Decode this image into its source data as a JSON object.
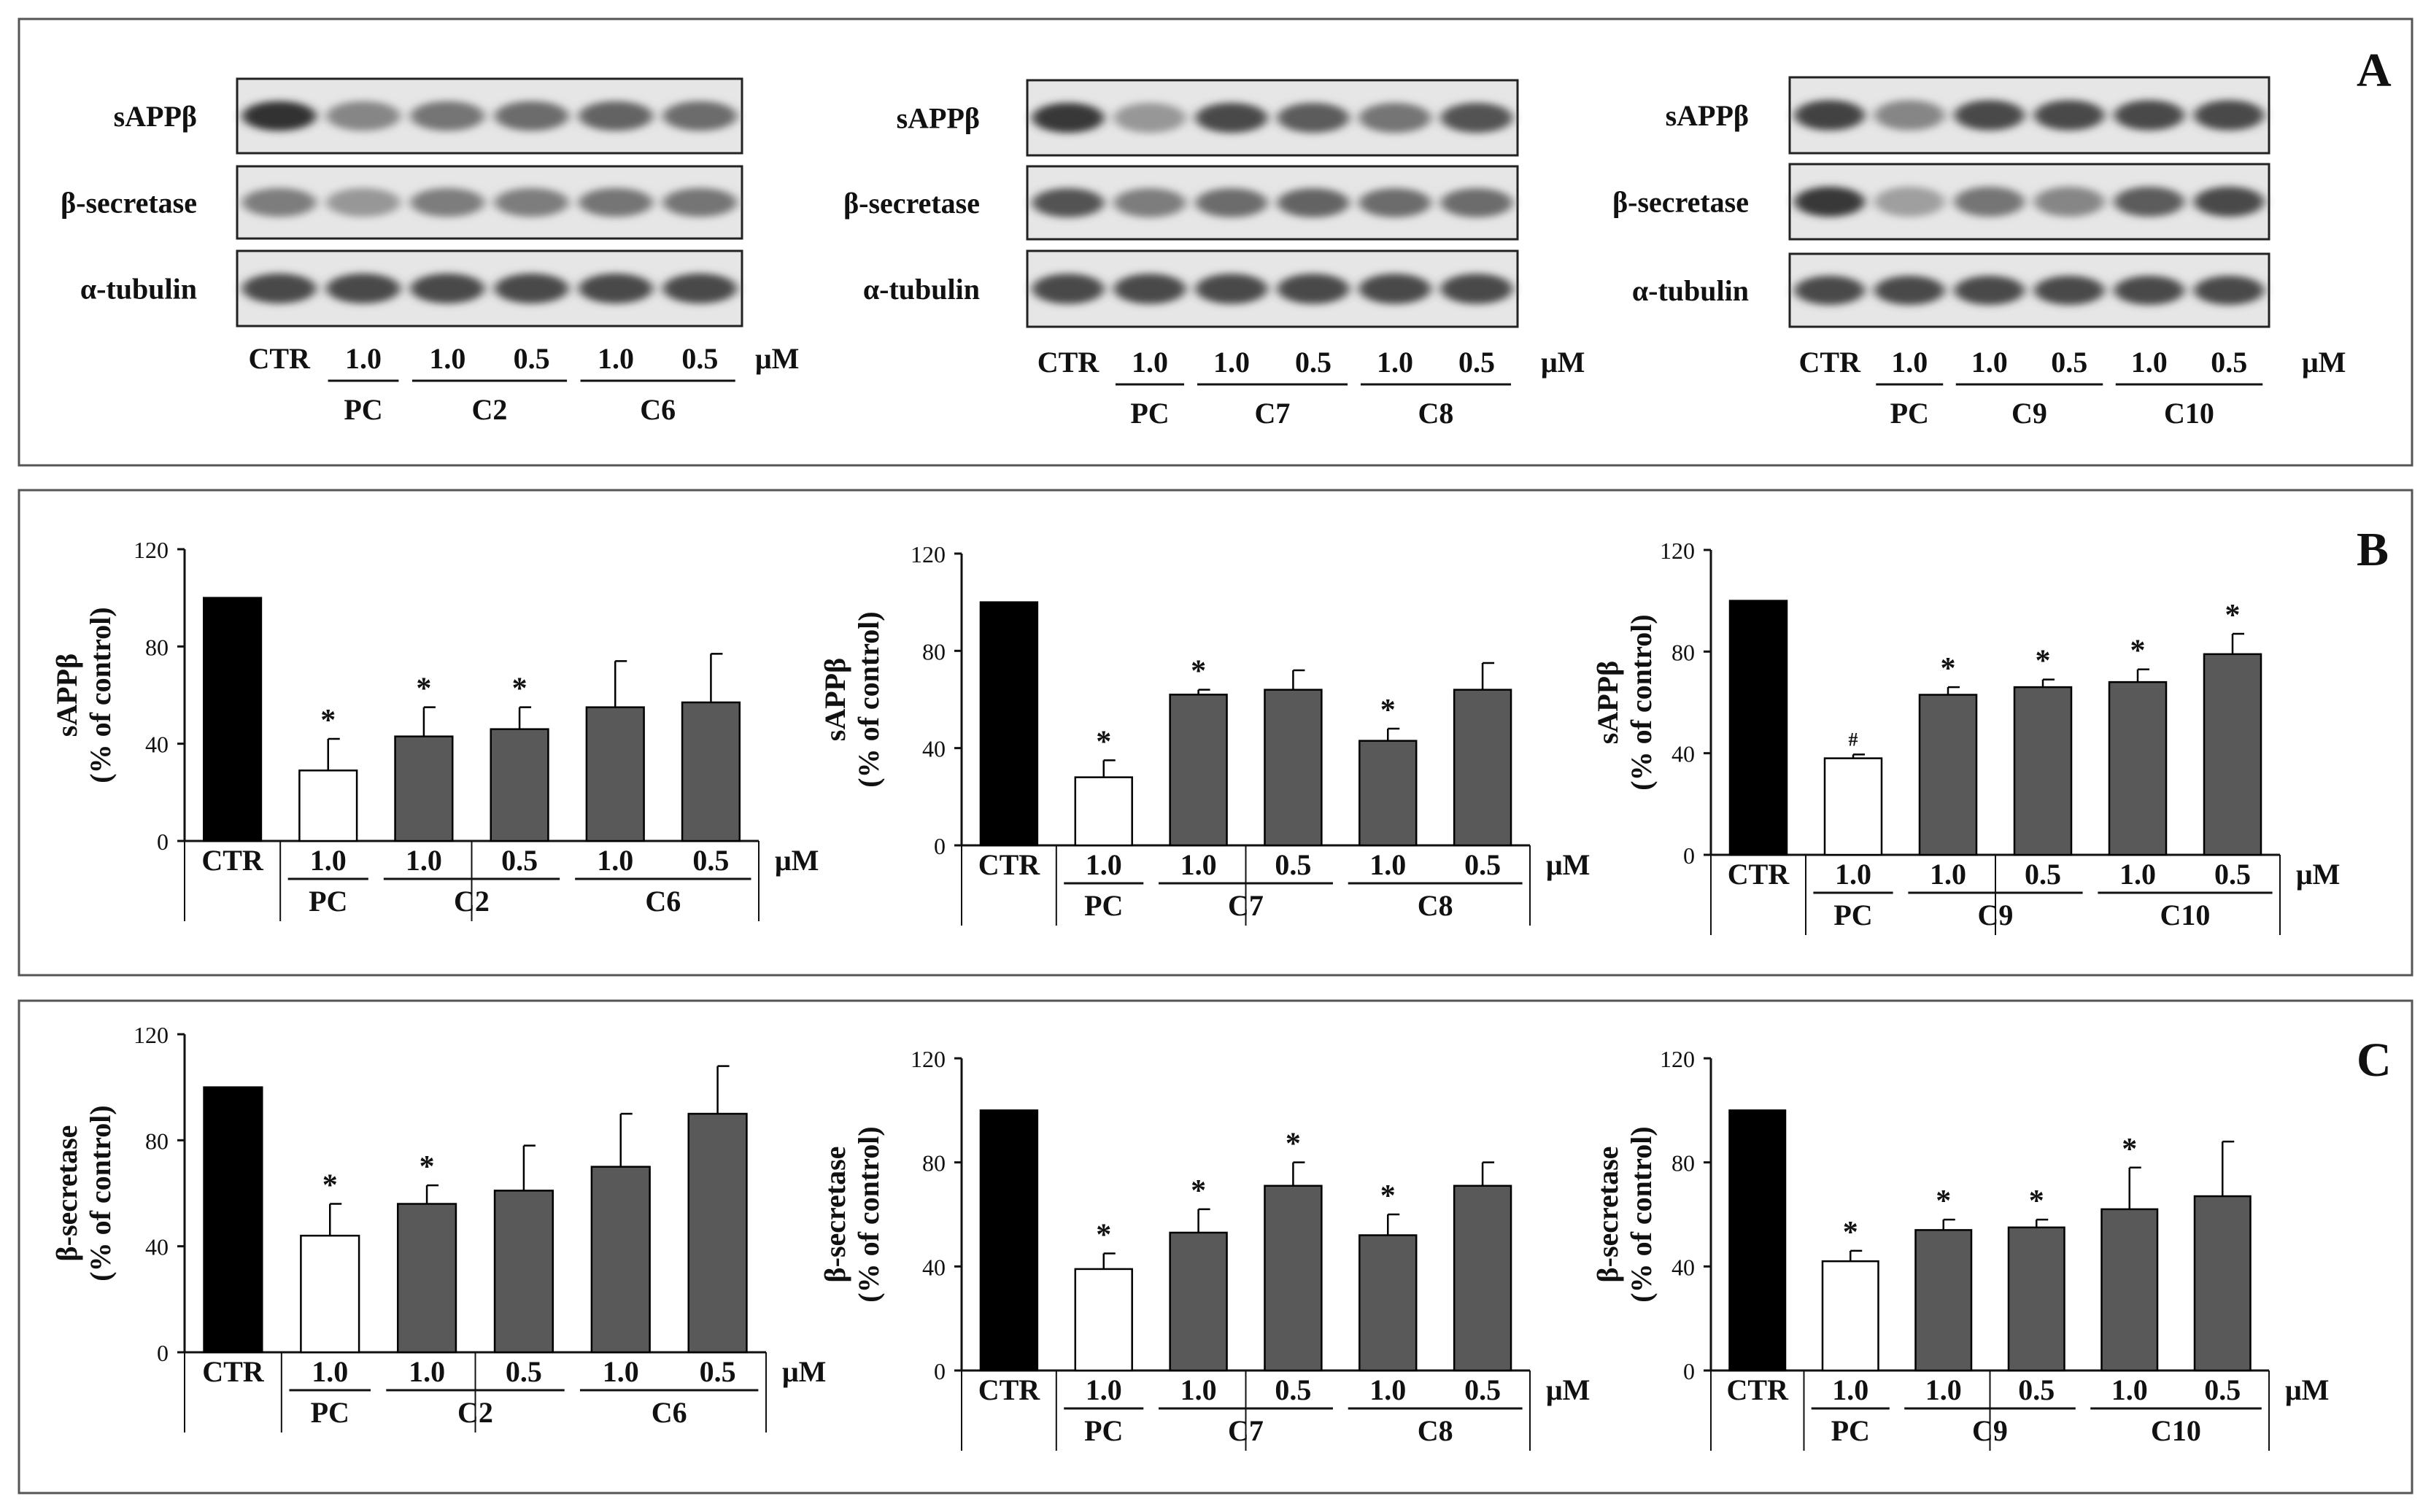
{
  "panels": {
    "A": {
      "letter": "A"
    },
    "B": {
      "letter": "B"
    },
    "C": {
      "letter": "C"
    }
  },
  "blots": [
    {
      "rows": [
        "sAPPβ",
        "β-secretase",
        "α-tubulin"
      ],
      "lanes": [
        "CTR",
        "1.0",
        "1.0",
        "0.5",
        "1.0",
        "0.5"
      ],
      "groups": [
        "PC",
        "C2",
        "C6"
      ],
      "unit": "μM",
      "intensity": [
        [
          0.95,
          0.45,
          0.55,
          0.6,
          0.65,
          0.6
        ],
        [
          0.5,
          0.35,
          0.5,
          0.5,
          0.55,
          0.55
        ],
        [
          0.8,
          0.8,
          0.8,
          0.8,
          0.8,
          0.8
        ]
      ]
    },
    {
      "rows": [
        "sAPPβ",
        "β-secretase",
        "α-tubulin"
      ],
      "lanes": [
        "CTR",
        "1.0",
        "1.0",
        "0.5",
        "1.0",
        "0.5"
      ],
      "groups": [
        "PC",
        "C7",
        "C8"
      ],
      "unit": "μM",
      "intensity": [
        [
          0.9,
          0.35,
          0.8,
          0.7,
          0.55,
          0.75
        ],
        [
          0.75,
          0.5,
          0.6,
          0.65,
          0.6,
          0.6
        ],
        [
          0.8,
          0.8,
          0.8,
          0.8,
          0.8,
          0.8
        ]
      ]
    },
    {
      "rows": [
        "sAPPβ",
        "β-secretase",
        "α-tubulin"
      ],
      "lanes": [
        "CTR",
        "1.0",
        "1.0",
        "0.5",
        "1.0",
        "0.5"
      ],
      "groups": [
        "PC",
        "C9",
        "C10"
      ],
      "unit": "μM",
      "intensity": [
        [
          0.85,
          0.45,
          0.8,
          0.8,
          0.8,
          0.8
        ],
        [
          0.9,
          0.3,
          0.55,
          0.45,
          0.7,
          0.8
        ],
        [
          0.8,
          0.8,
          0.8,
          0.8,
          0.8,
          0.8
        ]
      ]
    }
  ],
  "chart_data": [
    {
      "type": "bar",
      "panel": "B",
      "categories": [
        "CTR",
        "1.0",
        "1.0",
        "0.5",
        "1.0",
        "0.5"
      ],
      "groups": [
        "PC",
        "C2",
        "C6"
      ],
      "values": [
        100,
        29,
        43,
        46,
        55,
        57
      ],
      "errors": [
        0,
        13,
        12,
        9,
        19,
        20
      ],
      "significance": [
        "",
        "*",
        "*",
        "*",
        "",
        ""
      ],
      "ylabel": [
        "sAPPβ",
        "(% of control)"
      ],
      "ylim": [
        0,
        120
      ],
      "yticks": [
        0,
        40,
        80,
        120
      ],
      "unit": "μM",
      "colors": [
        "#000000",
        "#ffffff",
        "#595959",
        "#595959",
        "#595959",
        "#595959"
      ]
    },
    {
      "type": "bar",
      "panel": "B",
      "categories": [
        "CTR",
        "1.0",
        "1.0",
        "0.5",
        "1.0",
        "0.5"
      ],
      "groups": [
        "PC",
        "C7",
        "C8"
      ],
      "values": [
        100,
        28,
        62,
        64,
        43,
        64
      ],
      "errors": [
        0,
        7,
        2,
        8,
        5,
        11
      ],
      "significance": [
        "",
        "*",
        "*",
        "",
        "*",
        ""
      ],
      "ylabel": [
        "sAPPβ",
        "(% of control)"
      ],
      "ylim": [
        0,
        120
      ],
      "yticks": [
        0,
        40,
        80,
        120
      ],
      "unit": "μM",
      "colors": [
        "#000000",
        "#ffffff",
        "#595959",
        "#595959",
        "#595959",
        "#595959"
      ]
    },
    {
      "type": "bar",
      "panel": "B",
      "categories": [
        "CTR",
        "1.0",
        "1.0",
        "0.5",
        "1.0",
        "0.5"
      ],
      "groups": [
        "PC",
        "C9",
        "C10"
      ],
      "values": [
        100,
        38,
        63,
        66,
        68,
        79
      ],
      "errors": [
        0,
        1.5,
        3,
        3,
        5,
        8
      ],
      "significance": [
        "",
        "#",
        "*",
        "*",
        "*",
        "*"
      ],
      "ylabel": [
        "sAPPβ",
        "(% of control)"
      ],
      "ylim": [
        0,
        120
      ],
      "yticks": [
        0,
        40,
        80,
        120
      ],
      "unit": "μM",
      "colors": [
        "#000000",
        "#ffffff",
        "#595959",
        "#595959",
        "#595959",
        "#595959"
      ]
    },
    {
      "type": "bar",
      "panel": "C",
      "categories": [
        "CTR",
        "1.0",
        "1.0",
        "0.5",
        "1.0",
        "0.5"
      ],
      "groups": [
        "PC",
        "C2",
        "C6"
      ],
      "values": [
        100,
        44,
        56,
        61,
        70,
        90
      ],
      "errors": [
        0,
        12,
        7,
        17,
        20,
        18
      ],
      "significance": [
        "",
        "*",
        "*",
        "",
        "",
        ""
      ],
      "ylabel": [
        "β-secretase",
        "(% of control)"
      ],
      "ylim": [
        0,
        120
      ],
      "yticks": [
        0,
        40,
        80,
        120
      ],
      "unit": "μM",
      "colors": [
        "#000000",
        "#ffffff",
        "#595959",
        "#595959",
        "#595959",
        "#595959"
      ]
    },
    {
      "type": "bar",
      "panel": "C",
      "categories": [
        "CTR",
        "1.0",
        "1.0",
        "0.5",
        "1.0",
        "0.5"
      ],
      "groups": [
        "PC",
        "C7",
        "C8"
      ],
      "values": [
        100,
        39,
        53,
        71,
        52,
        71
      ],
      "errors": [
        0,
        6,
        9,
        9,
        8,
        9
      ],
      "significance": [
        "",
        "*",
        "*",
        "*",
        "*",
        ""
      ],
      "ylabel": [
        "β-secretase",
        "(% of control)"
      ],
      "ylim": [
        0,
        120
      ],
      "yticks": [
        0,
        40,
        80,
        120
      ],
      "unit": "μM",
      "colors": [
        "#000000",
        "#ffffff",
        "#595959",
        "#595959",
        "#595959",
        "#595959"
      ]
    },
    {
      "type": "bar",
      "panel": "C",
      "categories": [
        "CTR",
        "1.0",
        "1.0",
        "0.5",
        "1.0",
        "0.5"
      ],
      "groups": [
        "PC",
        "C9",
        "C10"
      ],
      "values": [
        100,
        42,
        54,
        55,
        62,
        67
      ],
      "errors": [
        0,
        4,
        4,
        3,
        16,
        21
      ],
      "significance": [
        "",
        "*",
        "*",
        "*",
        "*",
        ""
      ],
      "ylabel": [
        "β-secretase",
        "(% of control)"
      ],
      "ylim": [
        0,
        120
      ],
      "yticks": [
        0,
        40,
        80,
        120
      ],
      "unit": "μM",
      "colors": [
        "#000000",
        "#ffffff",
        "#595959",
        "#595959",
        "#595959",
        "#595959"
      ]
    }
  ]
}
